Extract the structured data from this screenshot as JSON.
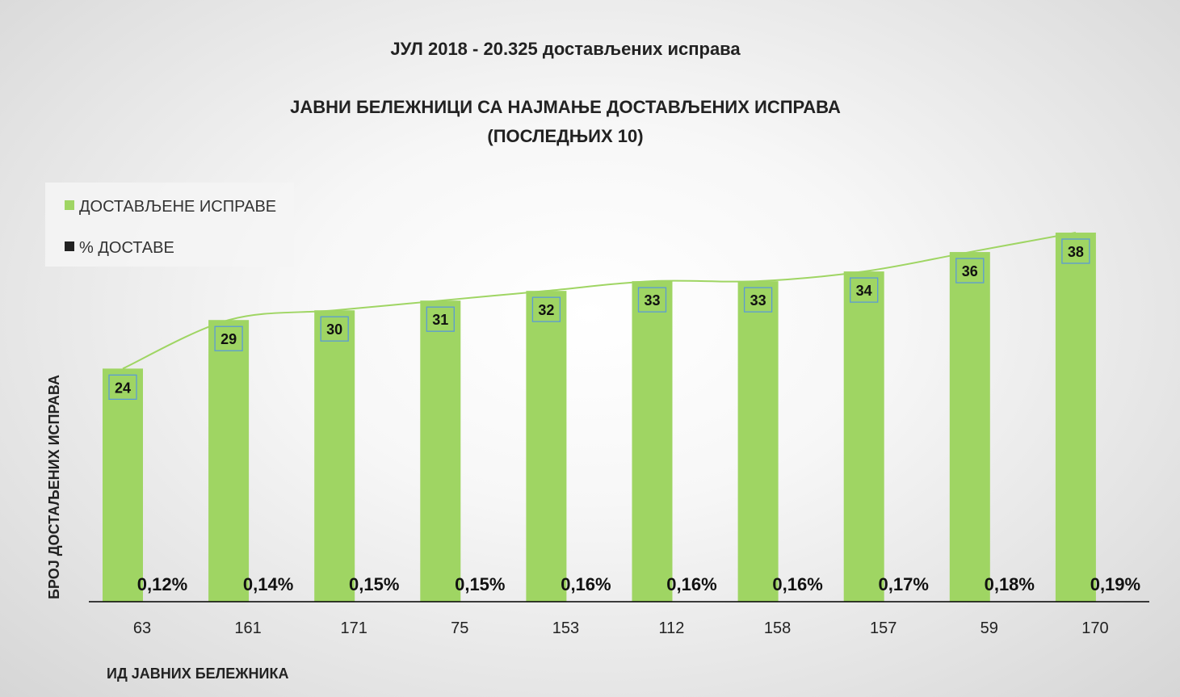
{
  "chart_data": {
    "type": "bar",
    "title_line1": "ЈУЛ 2018 - 20.325 достављених исправа",
    "title_line2": "ЈАВНИ БЕЛЕЖНИЦИ СА НАЈМАЊЕ ДОСТАВЉЕНИХ ИСПРАВА",
    "title_line3": "(ПОСЛЕДЊИХ 10)",
    "xlabel": "ИД ЈАВНИХ БЕЛЕЖНИКА",
    "ylabel": "БРОЈ ДОСТАЉЕНИХ ИСПРАВА",
    "categories": [
      "63",
      "161",
      "171",
      "75",
      "153",
      "112",
      "158",
      "157",
      "59",
      "170"
    ],
    "series": [
      {
        "name": "ДОСТАВЉЕНЕ ИСПРАВЕ",
        "values": [
          24,
          29,
          30,
          31,
          32,
          33,
          33,
          34,
          36,
          38
        ],
        "color": "#9fd563"
      },
      {
        "name": "% ДОСТАВЕ",
        "values": [
          "0,12%",
          "0,14%",
          "0,15%",
          "0,15%",
          "0,16%",
          "0,16%",
          "0,16%",
          "0,17%",
          "0,18%",
          "0,19%"
        ],
        "color": "#222222"
      }
    ],
    "ylim": [
      0,
      38
    ],
    "trend_line_color": "#9fd563",
    "label_box_color": "#5b9bd5",
    "legend_position": "top-left",
    "grid": false
  }
}
